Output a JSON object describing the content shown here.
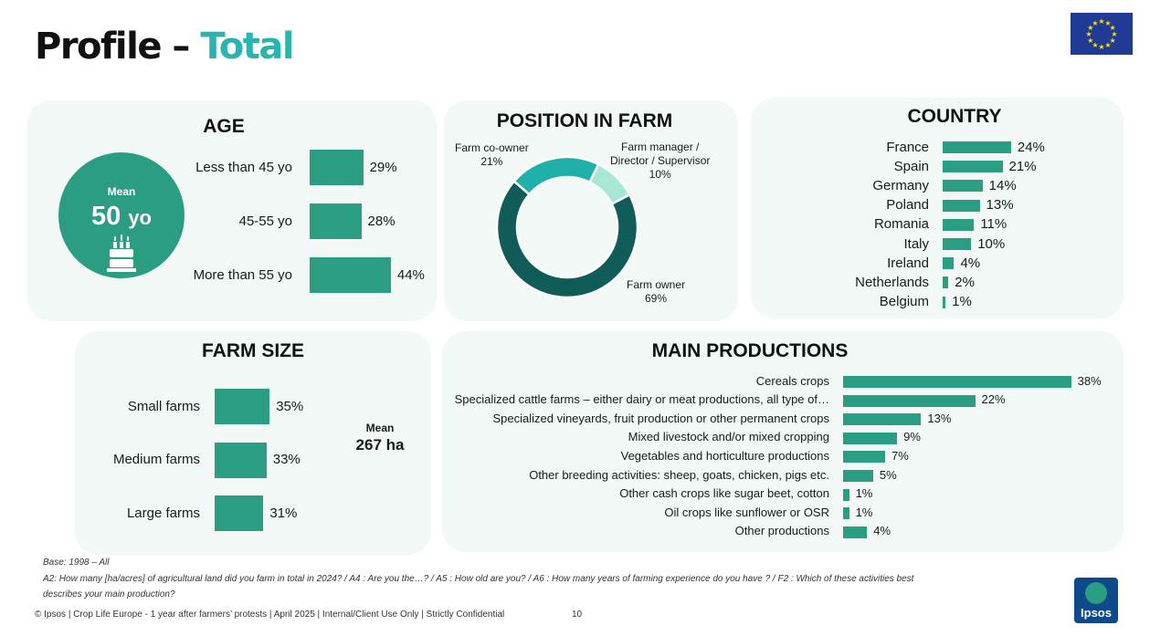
{
  "header": {
    "title_main": "Profile – ",
    "title_accent": "Total"
  },
  "age": {
    "title": "AGE",
    "mean_label": "Mean",
    "mean_value": "50",
    "mean_unit": "yo"
  },
  "position": {
    "title": "POSITION IN FARM"
  },
  "country": {
    "title": "COUNTRY"
  },
  "farm_size": {
    "title": "FARM SIZE",
    "mean_label": "Mean",
    "mean_value": "267 ha"
  },
  "main_productions": {
    "title": "MAIN PRODUCTIONS"
  },
  "chart_data": [
    {
      "type": "bar",
      "title": "AGE",
      "categories": [
        "Less than 45 yo",
        "45-55 yo",
        "More than 55 yo"
      ],
      "values": [
        29,
        28,
        44
      ],
      "value_labels": [
        "29%",
        "28%",
        "44%"
      ],
      "orientation": "horizontal"
    },
    {
      "type": "pie",
      "title": "POSITION IN FARM",
      "categories": [
        "Farm owner",
        "Farm co-owner",
        "Farm manager / Director / Supervisor"
      ],
      "values": [
        69,
        21,
        10
      ],
      "value_labels": [
        "69%",
        "21%",
        "10%"
      ],
      "colors": [
        "#0f5c59",
        "#1fb0aa",
        "#a8e6d6"
      ]
    },
    {
      "type": "bar",
      "title": "COUNTRY",
      "categories": [
        "France",
        "Spain",
        "Germany",
        "Poland",
        "Romania",
        "Italy",
        "Ireland",
        "Netherlands",
        "Belgium"
      ],
      "values": [
        24,
        21,
        14,
        13,
        11,
        10,
        4,
        2,
        1
      ],
      "value_labels": [
        "24%",
        "21%",
        "14%",
        "13%",
        "11%",
        "10%",
        "4%",
        "2%",
        "1%"
      ],
      "orientation": "horizontal"
    },
    {
      "type": "bar",
      "title": "FARM SIZE",
      "categories": [
        "Small farms",
        "Medium farms",
        "Large farms"
      ],
      "values": [
        35,
        33,
        31
      ],
      "value_labels": [
        "35%",
        "33%",
        "31%"
      ],
      "orientation": "horizontal"
    },
    {
      "type": "bar",
      "title": "MAIN PRODUCTIONS",
      "categories": [
        "Cereals crops",
        "Specialized cattle farms – either dairy or meat productions, all type of…",
        "Specialized vineyards, fruit production or other permanent crops",
        "Mixed livestock and/or mixed cropping",
        "Vegetables and horticulture productions",
        "Other breeding activities: sheep, goats, chicken, pigs etc.",
        "Other cash crops like sugar beet, cotton",
        "Oil crops like sunflower or OSR",
        "Other productions"
      ],
      "values": [
        38,
        22,
        13,
        9,
        7,
        5,
        1,
        1,
        4
      ],
      "value_labels": [
        "38%",
        "22%",
        "13%",
        "9%",
        "7%",
        "5%",
        "1%",
        "1%",
        "4%"
      ],
      "orientation": "horizontal"
    }
  ],
  "footer": {
    "base": "Base: 1998 – All",
    "questions_1": "A2: How many [ha/acres] of agricultural land did you farm in total in 2024? / A4 : Are you the…? / A5 : How old are you? / A6 : How many years of farming experience do you have ? / F2 : Which of these activities best",
    "questions_2": "describes your main production?",
    "copyright": "© Ipsos | Crop Life Europe - 1 year after farmers’ protests | April 2025 | Internal/Client Use Only | Strictly Confidential",
    "page_number": "10",
    "logo_text": "Ipsos"
  },
  "colors": {
    "accent": "#2bb3ad",
    "bar": "#2a9d82",
    "panel_bg": "#f1f8f6"
  }
}
